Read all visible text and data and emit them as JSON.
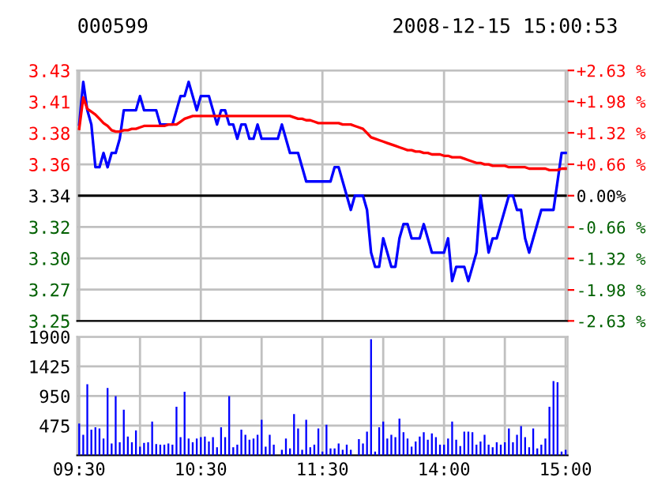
{
  "chart_data": [
    {
      "type": "line",
      "title": "000599",
      "subtitle": "2008-12-15 15:00:53",
      "grid": true,
      "legend": false,
      "marker": "none",
      "line_style": "solid",
      "categories": [
        null,
        null,
        null,
        null,
        null,
        null,
        null,
        null,
        null,
        null,
        null,
        null,
        null,
        null,
        null,
        null,
        null,
        null,
        null,
        null,
        null,
        null,
        null,
        null,
        null,
        null,
        null,
        null,
        null,
        null,
        null,
        null,
        null,
        null,
        null,
        null,
        null,
        null,
        null,
        null,
        null,
        null,
        null,
        null,
        null,
        null,
        null,
        null,
        null,
        null,
        null,
        null,
        null,
        null,
        null,
        null,
        null,
        null,
        null,
        null,
        null,
        null,
        null,
        null,
        null,
        null,
        null,
        null,
        null,
        null,
        null,
        null,
        null,
        null,
        null,
        null,
        null,
        null,
        null,
        null,
        null,
        null,
        null,
        null,
        null,
        null,
        null,
        null,
        null,
        null,
        null,
        null,
        null,
        null,
        null,
        null,
        null,
        null,
        null,
        null,
        null,
        null,
        null,
        null,
        null,
        null,
        null,
        null,
        null,
        null,
        null,
        null,
        null,
        null,
        null,
        null,
        null,
        null,
        null,
        null,
        null
      ],
      "ylim": [
        3.252,
        3.428
      ],
      "yticks": [
        {
          "value": 3.428,
          "label": "3.43"
        },
        {
          "value": 3.406,
          "label": "3.41"
        },
        {
          "value": 3.384,
          "label": "3.38"
        },
        {
          "value": 3.362,
          "label": "3.36"
        },
        {
          "value": 3.34,
          "label": "3.34"
        },
        {
          "value": 3.318,
          "label": "3.32"
        },
        {
          "value": 3.296,
          "label": "3.30"
        },
        {
          "value": 3.274,
          "label": "3.27"
        },
        {
          "value": 3.252,
          "label": "3.25"
        }
      ],
      "y2lim": [
        -2.63,
        2.63
      ],
      "y2ticks": [
        {
          "value": 2.63,
          "label": "+2.63 %"
        },
        {
          "value": 1.98,
          "label": "+1.98 %"
        },
        {
          "value": 1.32,
          "label": "+1.32 %"
        },
        {
          "value": 0.66,
          "label": "+0.66 %"
        },
        {
          "value": 0,
          "label": "0.00%"
        },
        {
          "value": -0.66,
          "label": "-0.66 %"
        },
        {
          "value": -1.32,
          "label": "-1.32 %"
        },
        {
          "value": -1.98,
          "label": "-1.98 %"
        },
        {
          "value": -2.63,
          "label": "-2.63 %"
        }
      ],
      "ref_lines": [
        {
          "axis": "y",
          "value": 3.34,
          "color": "#000000",
          "line_style": "solid"
        }
      ],
      "series": [
        {
          "color": "#0000ff",
          "values": [
            3.39,
            3.42,
            3.4,
            3.39,
            3.36,
            3.36,
            3.37,
            3.36,
            3.37,
            3.37,
            3.38,
            3.4,
            3.4,
            3.4,
            3.4,
            3.41,
            3.4,
            3.4,
            3.4,
            3.4,
            3.39,
            3.39,
            3.39,
            3.39,
            3.4,
            3.41,
            3.41,
            3.42,
            3.41,
            3.4,
            3.41,
            3.41,
            3.41,
            3.4,
            3.39,
            3.4,
            3.4,
            3.39,
            3.39,
            3.38,
            3.39,
            3.39,
            3.38,
            3.38,
            3.39,
            3.38,
            3.38,
            3.38,
            3.38,
            3.38,
            3.39,
            3.38,
            3.37,
            3.37,
            3.37,
            3.36,
            3.35,
            3.35,
            3.35,
            3.35,
            3.35,
            3.35,
            3.35,
            3.36,
            3.36,
            3.35,
            3.34,
            3.33,
            3.34,
            3.34,
            3.34,
            3.33,
            3.3,
            3.29,
            3.29,
            3.31,
            3.3,
            3.29,
            3.29,
            3.31,
            3.32,
            3.32,
            3.31,
            3.31,
            3.31,
            3.32,
            3.31,
            3.3,
            3.3,
            3.3,
            3.3,
            3.31,
            3.28,
            3.29,
            3.29,
            3.29,
            3.28,
            3.29,
            3.3,
            3.34,
            3.32,
            3.3,
            3.31,
            3.31,
            3.32,
            3.33,
            3.34,
            3.34,
            3.33,
            3.33,
            3.31,
            3.3,
            3.31,
            3.32,
            3.33,
            3.33,
            3.33,
            3.33,
            3.35,
            3.37,
            3.37
          ]
        },
        {
          "color": "#ff0000",
          "values": [
            3.387,
            3.409,
            3.401,
            3.399,
            3.397,
            3.394,
            3.391,
            3.389,
            3.386,
            3.385,
            3.385,
            3.386,
            3.386,
            3.387,
            3.387,
            3.388,
            3.389,
            3.389,
            3.389,
            3.389,
            3.389,
            3.389,
            3.39,
            3.39,
            3.39,
            3.392,
            3.394,
            3.395,
            3.396,
            3.396,
            3.396,
            3.396,
            3.396,
            3.396,
            3.396,
            3.396,
            3.396,
            3.396,
            3.396,
            3.396,
            3.396,
            3.396,
            3.396,
            3.396,
            3.396,
            3.396,
            3.396,
            3.396,
            3.396,
            3.396,
            3.396,
            3.396,
            3.396,
            3.395,
            3.394,
            3.394,
            3.393,
            3.393,
            3.392,
            3.391,
            3.391,
            3.391,
            3.391,
            3.391,
            3.391,
            3.39,
            3.39,
            3.39,
            3.389,
            3.388,
            3.387,
            3.384,
            3.381,
            3.38,
            3.379,
            3.378,
            3.377,
            3.376,
            3.375,
            3.374,
            3.373,
            3.372,
            3.372,
            3.371,
            3.371,
            3.37,
            3.37,
            3.369,
            3.369,
            3.369,
            3.368,
            3.368,
            3.367,
            3.367,
            3.367,
            3.366,
            3.365,
            3.364,
            3.363,
            3.363,
            3.362,
            3.362,
            3.361,
            3.361,
            3.361,
            3.361,
            3.36,
            3.36,
            3.36,
            3.36,
            3.36,
            3.359,
            3.359,
            3.359,
            3.359,
            3.359,
            3.358,
            3.358,
            3.358,
            3.359,
            3.359
          ]
        }
      ]
    },
    {
      "type": "bar",
      "grid": true,
      "legend": false,
      "categories": [
        "09:30",
        null,
        null,
        null,
        null,
        null,
        null,
        null,
        null,
        null,
        null,
        null,
        null,
        null,
        null,
        null,
        null,
        null,
        null,
        null,
        null,
        null,
        null,
        null,
        null,
        null,
        null,
        null,
        null,
        null,
        "10:30",
        null,
        null,
        null,
        null,
        null,
        null,
        null,
        null,
        null,
        null,
        null,
        null,
        null,
        null,
        null,
        null,
        null,
        null,
        null,
        null,
        null,
        null,
        null,
        null,
        null,
        null,
        null,
        null,
        null,
        "11:30",
        null,
        null,
        null,
        null,
        null,
        null,
        null,
        null,
        null,
        null,
        null,
        null,
        null,
        null,
        null,
        null,
        null,
        null,
        null,
        null,
        null,
        null,
        null,
        null,
        null,
        null,
        null,
        null,
        null,
        "14:00",
        null,
        null,
        null,
        null,
        null,
        null,
        null,
        null,
        null,
        null,
        null,
        null,
        null,
        null,
        null,
        null,
        null,
        null,
        null,
        null,
        null,
        null,
        null,
        null,
        null,
        null,
        null,
        null,
        null,
        "15:00"
      ],
      "ylim": [
        0,
        1900
      ],
      "yticks": [
        {
          "value": 0,
          "label": null
        },
        475,
        950,
        1425,
        1900
      ],
      "series": [
        {
          "color": "#0000ff",
          "values": [
            510,
            330,
            1140,
            410,
            450,
            430,
            270,
            1080,
            190,
            950,
            210,
            730,
            300,
            210,
            400,
            140,
            200,
            210,
            540,
            180,
            170,
            170,
            190,
            170,
            780,
            290,
            1020,
            270,
            210,
            270,
            290,
            300,
            220,
            290,
            130,
            450,
            290,
            950,
            130,
            170,
            410,
            330,
            250,
            270,
            330,
            570,
            140,
            330,
            170,
            null,
            90,
            270,
            110,
            660,
            430,
            90,
            570,
            130,
            170,
            430,
            60,
            490,
            110,
            110,
            190,
            90,
            170,
            90,
            null,
            260,
            190,
            380,
            1860,
            60,
            450,
            540,
            270,
            330,
            290,
            590,
            370,
            270,
            140,
            220,
            300,
            370,
            250,
            350,
            290,
            170,
            170,
            270,
            540,
            250,
            150,
            380,
            380,
            370,
            170,
            220,
            330,
            170,
            130,
            210,
            170,
            210,
            430,
            210,
            330,
            470,
            290,
            130,
            430,
            110,
            170,
            270,
            780,
            1190,
            1170,
            60,
            90
          ]
        }
      ]
    }
  ]
}
